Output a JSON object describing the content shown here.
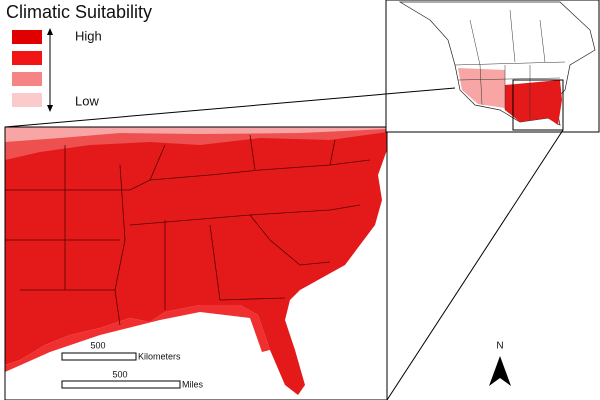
{
  "legend": {
    "title": "Climatic Suitability",
    "high_label": "High",
    "low_label": "Low",
    "colors": [
      "#e00000",
      "#f21515",
      "#f58585",
      "#fbcaca"
    ]
  },
  "scale_bars": [
    {
      "value": 500,
      "unit": "Kilometers"
    },
    {
      "value": 500,
      "unit": "Miles"
    }
  ],
  "north_arrow": "N"
}
